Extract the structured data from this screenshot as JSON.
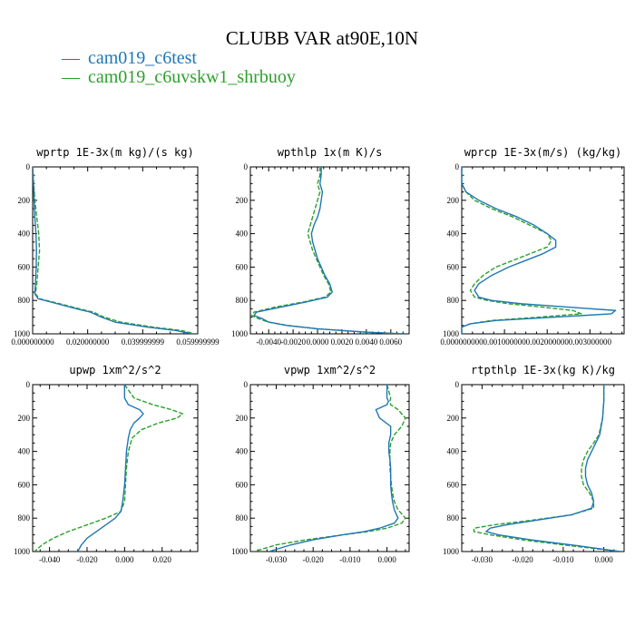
{
  "figure_title": "CLUBB VAR at90E,10N",
  "colors": {
    "c6test": "#1f77b4",
    "c6uvskw1_shrbuoy": "#2ca02c"
  },
  "legend": [
    {
      "symbol": "—",
      "label": "cam019_c6test",
      "color": "#1f77b4"
    },
    {
      "symbol": "—",
      "label": "cam019_c6uvskw1_shrbuoy",
      "color": "#2ca02c"
    }
  ],
  "chart_data": [
    {
      "type": "line",
      "title": "wprtp  1E-3x(m kg)/(s kg)",
      "xlim": [
        0,
        0.06
      ],
      "ylim": [
        1000,
        0
      ],
      "xticks": [
        0,
        0.02,
        0.04,
        0.06
      ],
      "xtick_labels": [
        "0.000000000",
        "0.020000000",
        "0.039999999",
        "0.059999999"
      ],
      "yticks": [
        0,
        200,
        400,
        600,
        800,
        1000
      ],
      "series": [
        {
          "name": "cam019_c6test",
          "y": [
            0,
            100,
            200,
            300,
            400,
            500,
            600,
            700,
            760,
            790,
            820,
            850,
            870,
            900,
            930,
            960,
            980,
            1000
          ],
          "x": [
            0,
            0.0003,
            0.0005,
            0.0008,
            0.0012,
            0.0014,
            0.0013,
            0.001,
            0.0008,
            0.002,
            0.009,
            0.016,
            0.021,
            0.025,
            0.03,
            0.042,
            0.052,
            0.058
          ]
        },
        {
          "name": "cam019_c6uvskw1_shrbuoy",
          "y": [
            0,
            100,
            200,
            300,
            400,
            500,
            600,
            700,
            760,
            790,
            820,
            850,
            870,
            900,
            930,
            960,
            980,
            1000
          ],
          "x": [
            0,
            0.0004,
            0.0008,
            0.0015,
            0.0022,
            0.0025,
            0.002,
            0.0015,
            0.001,
            0.0025,
            0.01,
            0.017,
            0.022,
            0.026,
            0.032,
            0.044,
            0.054,
            0.059
          ]
        }
      ]
    },
    {
      "type": "line",
      "title": "wpthlp  1x(m K)/s",
      "xlim": [
        -0.0055,
        0.0075
      ],
      "ylim": [
        1000,
        0
      ],
      "xticks": [
        -0.004,
        -0.002,
        0,
        0.002,
        0.004,
        0.006
      ],
      "xtick_labels": [
        "-0.0040",
        "-0.0020",
        "0.0000",
        "0.0020",
        "0.0040",
        "0.0060"
      ],
      "yticks": [
        0,
        200,
        400,
        600,
        800,
        1000
      ],
      "series": [
        {
          "name": "cam019_c6test",
          "y": [
            0,
            50,
            100,
            150,
            200,
            250,
            300,
            350,
            400,
            450,
            500,
            550,
            600,
            650,
            700,
            750,
            780,
            810,
            840,
            870,
            890,
            910,
            930,
            950,
            970,
            990,
            1000
          ],
          "x": [
            0.0003,
            0.0003,
            0.0002,
            0.0004,
            0.0003,
            0.0002,
            0,
            -0.0003,
            -0.0005,
            -0.0004,
            -0.0002,
            0,
            0.0003,
            0.0006,
            0.001,
            0.0012,
            0.0008,
            -0.001,
            -0.003,
            -0.005,
            -0.0052,
            -0.0045,
            -0.004,
            -0.0025,
            0,
            0.004,
            0.007
          ]
        },
        {
          "name": "cam019_c6uvskw1_shrbuoy",
          "y": [
            0,
            50,
            100,
            150,
            200,
            250,
            300,
            350,
            400,
            450,
            500,
            550,
            600,
            650,
            700,
            750,
            780,
            810,
            840,
            870,
            890,
            910,
            930,
            950,
            970,
            990,
            1000
          ],
          "x": [
            0.0002,
            0.0002,
            0,
            0.0002,
            0,
            -0.0002,
            -0.0004,
            -0.0006,
            -0.0008,
            -0.0006,
            -0.0004,
            -0.0001,
            0.0002,
            0.0005,
            0.0009,
            0.0011,
            0.0006,
            -0.0012,
            -0.0035,
            -0.0052,
            -0.0054,
            -0.0048,
            -0.004,
            -0.0024,
            0,
            0.004,
            0.007
          ]
        }
      ]
    },
    {
      "type": "line",
      "title": "wprcp  1E-3x(m/s) (kg/kg)",
      "xlim": [
        0,
        0.0038
      ],
      "ylim": [
        1000,
        0
      ],
      "xticks": [
        0,
        0.001,
        0.002,
        0.003
      ],
      "xtick_labels": [
        "0.000000000",
        "0.001000000",
        "0.002000000",
        "0.003000000"
      ],
      "yticks": [
        0,
        200,
        400,
        600,
        800,
        1000
      ],
      "series": [
        {
          "name": "cam019_c6test",
          "y": [
            0,
            100,
            150,
            200,
            250,
            300,
            350,
            400,
            440,
            480,
            520,
            560,
            600,
            650,
            700,
            740,
            780,
            800,
            820,
            840,
            860,
            880,
            900,
            920,
            940,
            960,
            1000
          ],
          "x": [
            0,
            0,
            0.0001,
            0.0004,
            0.0008,
            0.0013,
            0.0017,
            0.002,
            0.0022,
            0.0022,
            0.0019,
            0.0015,
            0.0011,
            0.0007,
            0.0004,
            0.0003,
            0.0004,
            0.0007,
            0.0014,
            0.0025,
            0.0036,
            0.0035,
            0.0022,
            0.0008,
            0.0002,
            0,
            0
          ]
        },
        {
          "name": "cam019_c6uvskw1_shrbuoy",
          "y": [
            0,
            100,
            150,
            200,
            250,
            300,
            350,
            400,
            440,
            480,
            520,
            560,
            600,
            650,
            700,
            740,
            780,
            800,
            820,
            840,
            860,
            880,
            900,
            920,
            940,
            960,
            1000
          ],
          "x": [
            0,
            0,
            0.0001,
            0.0003,
            0.0007,
            0.0012,
            0.0016,
            0.002,
            0.0021,
            0.002,
            0.0016,
            0.0012,
            0.0008,
            0.0005,
            0.0003,
            0.0002,
            0.0003,
            0.0006,
            0.0011,
            0.0019,
            0.0026,
            0.0028,
            0.0018,
            0.0007,
            0.0002,
            0,
            0
          ]
        }
      ]
    },
    {
      "type": "line",
      "title": "upwp  1xm^2/s^2",
      "xlim": [
        -0.049,
        0.039
      ],
      "ylim": [
        1000,
        0
      ],
      "xticks": [
        -0.04,
        -0.02,
        0,
        0.02
      ],
      "xtick_labels": [
        "-0.040",
        "-0.020",
        "0.000",
        "0.020"
      ],
      "yticks": [
        0,
        200,
        400,
        600,
        800,
        1000
      ],
      "series": [
        {
          "name": "cam019_c6test",
          "y": [
            0,
            80,
            120,
            150,
            175,
            200,
            230,
            270,
            320,
            400,
            500,
            600,
            700,
            760,
            800,
            840,
            880,
            920,
            960,
            1000
          ],
          "x": [
            0,
            0,
            0.002,
            0.008,
            0.01,
            0.008,
            0.005,
            0.003,
            0.002,
            0.001,
            0.0005,
            0,
            -0.001,
            -0.002,
            -0.005,
            -0.01,
            -0.015,
            -0.02,
            -0.023,
            -0.025
          ]
        },
        {
          "name": "cam019_c6uvskw1_shrbuoy",
          "y": [
            0,
            80,
            120,
            150,
            175,
            200,
            230,
            270,
            320,
            400,
            500,
            600,
            700,
            760,
            800,
            840,
            880,
            920,
            960,
            1000
          ],
          "x": [
            0,
            0.005,
            0.015,
            0.025,
            0.031,
            0.028,
            0.018,
            0.009,
            0.004,
            0.002,
            0.001,
            0.0005,
            0,
            -0.002,
            -0.01,
            -0.02,
            -0.03,
            -0.038,
            -0.044,
            -0.048
          ]
        }
      ]
    },
    {
      "type": "line",
      "title": "vpwp  1xm^2/s^2",
      "xlim": [
        -0.037,
        0.006
      ],
      "ylim": [
        1000,
        0
      ],
      "xticks": [
        -0.03,
        -0.02,
        -0.01,
        0
      ],
      "xtick_labels": [
        "-0.030",
        "-0.020",
        "-0.010",
        "0.000"
      ],
      "yticks": [
        0,
        200,
        400,
        600,
        800,
        1000
      ],
      "series": [
        {
          "name": "cam019_c6test",
          "y": [
            0,
            80,
            100,
            120,
            150,
            200,
            250,
            300,
            350,
            400,
            450,
            500,
            550,
            600,
            650,
            700,
            750,
            800,
            830,
            860,
            880,
            900,
            930,
            960,
            1000
          ],
          "x": [
            0,
            0,
            0.0004,
            0,
            -0.003,
            -0.002,
            0.001,
            0.001,
            0.0005,
            0.0005,
            0.0008,
            0.001,
            0.001,
            0.001,
            0.0012,
            0.0015,
            0.002,
            0.003,
            0.002,
            -0.002,
            -0.006,
            -0.012,
            -0.02,
            -0.026,
            -0.032
          ]
        },
        {
          "name": "cam019_c6uvskw1_shrbuoy",
          "y": [
            0,
            80,
            100,
            120,
            150,
            200,
            250,
            300,
            350,
            400,
            450,
            500,
            550,
            600,
            650,
            700,
            750,
            800,
            830,
            860,
            880,
            900,
            930,
            960,
            1000
          ],
          "x": [
            0,
            0.001,
            0.0008,
            0.001,
            0.003,
            0.005,
            0.004,
            0.002,
            0.001,
            0.0008,
            0.0008,
            0.0008,
            0.001,
            0.0012,
            0.0015,
            0.002,
            0.003,
            0.005,
            0.004,
            0,
            -0.005,
            -0.012,
            -0.022,
            -0.03,
            -0.036
          ]
        }
      ]
    },
    {
      "type": "line",
      "title": "rtpthlp  1E-3x(kg K)/kg",
      "xlim": [
        -0.035,
        0.005
      ],
      "ylim": [
        1000,
        0
      ],
      "xticks": [
        -0.03,
        -0.02,
        -0.01,
        0
      ],
      "xtick_labels": [
        "-0.030",
        "-0.020",
        "-0.010",
        "0.000"
      ],
      "yticks": [
        0,
        200,
        400,
        600,
        800,
        1000
      ],
      "series": [
        {
          "name": "cam019_c6test",
          "y": [
            0,
            100,
            200,
            300,
            350,
            400,
            450,
            500,
            550,
            600,
            650,
            700,
            740,
            780,
            810,
            840,
            860,
            880,
            900,
            930,
            960,
            980,
            1000
          ],
          "x": [
            0,
            0,
            -0.0003,
            -0.001,
            -0.002,
            -0.003,
            -0.004,
            -0.0045,
            -0.0045,
            -0.004,
            -0.003,
            -0.0025,
            -0.003,
            -0.008,
            -0.016,
            -0.024,
            -0.028,
            -0.029,
            -0.026,
            -0.018,
            -0.008,
            -0.002,
            0.004
          ]
        },
        {
          "name": "cam019_c6uvskw1_shrbuoy",
          "y": [
            0,
            100,
            200,
            300,
            350,
            400,
            450,
            500,
            550,
            600,
            650,
            700,
            740,
            780,
            810,
            840,
            860,
            880,
            900,
            930,
            960,
            980,
            1000
          ],
          "x": [
            0,
            0,
            -0.0003,
            -0.0012,
            -0.0025,
            -0.004,
            -0.005,
            -0.0055,
            -0.0055,
            -0.005,
            -0.0035,
            -0.0025,
            -0.0025,
            -0.008,
            -0.017,
            -0.027,
            -0.032,
            -0.032,
            -0.028,
            -0.02,
            -0.01,
            -0.003,
            0.004
          ]
        }
      ]
    }
  ]
}
